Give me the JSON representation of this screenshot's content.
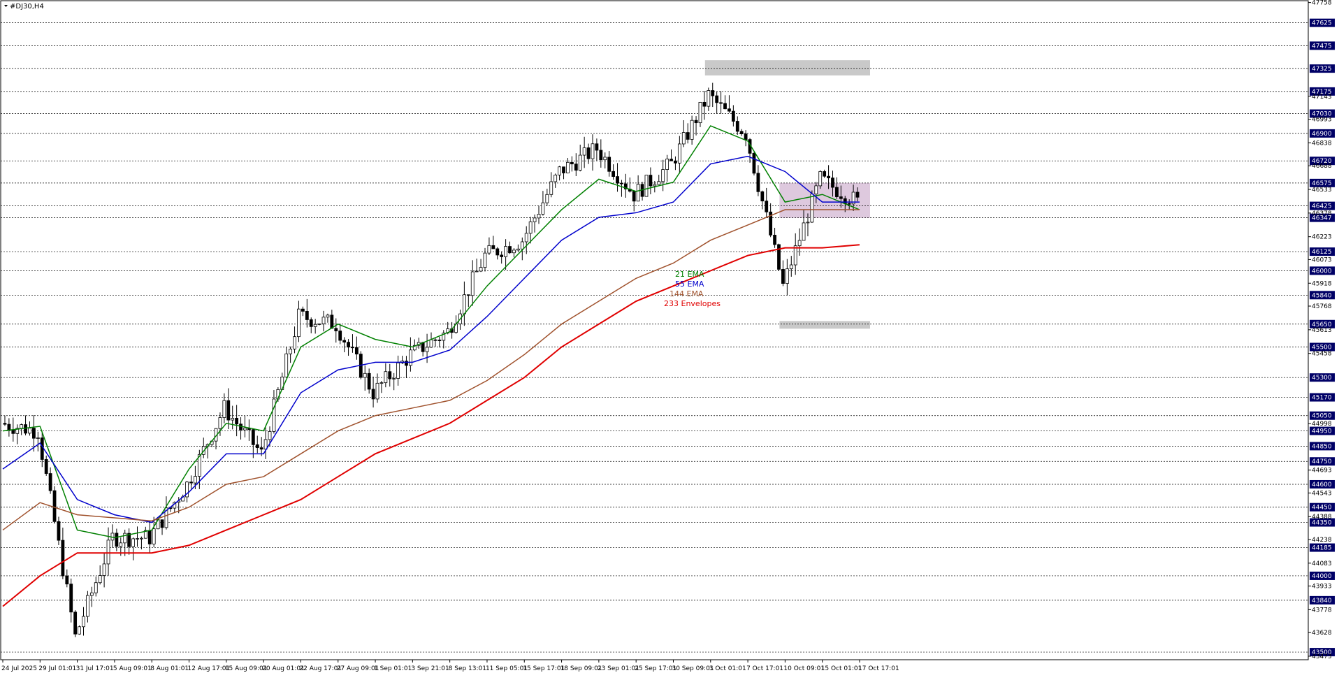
{
  "chart_data": {
    "type": "candlestick",
    "title": "#DJ30,H4",
    "ylim": [
      43450,
      47770
    ],
    "x_labels": [
      "24 Jul 2025",
      "29 Jul 01:01",
      "31 Jul 17:01",
      "5 Aug 09:01",
      "8 Aug 01:01",
      "12 Aug 17:01",
      "15 Aug 09:01",
      "20 Aug 01:01",
      "22 Aug 17:01",
      "27 Aug 09:01",
      "1 Sep 01:01",
      "3 Sep 21:01",
      "8 Sep 13:01",
      "11 Sep 05:01",
      "15 Sep 17:01",
      "18 Sep 09:01",
      "23 Sep 01:01",
      "25 Sep 17:01",
      "30 Sep 09:01",
      "3 Oct 01:01",
      "7 Oct 17:01",
      "10 Oct 09:01",
      "15 Oct 01:01",
      "17 Oct 17:01"
    ],
    "y_ticks_boxed": [
      47625,
      47475,
      47325,
      47175,
      47030,
      46900,
      46720,
      46575,
      46425,
      46347,
      46125,
      46000,
      45840,
      45650,
      45500,
      45300,
      45170,
      45050,
      44950,
      44850,
      44750,
      44600,
      44450,
      44350,
      44185,
      44000,
      43840,
      43500
    ],
    "y_ticks_plain": [
      47758,
      47143,
      46993,
      46838,
      46688,
      46533,
      46378,
      46223,
      46073,
      45918,
      45768,
      45613,
      45458,
      44998,
      44693,
      44543,
      44388,
      44238,
      44083,
      43933,
      43778,
      43628,
      43473
    ],
    "legend": [
      {
        "label": "21 EMA",
        "color": "#008000"
      },
      {
        "label": "55 EMA",
        "color": "#0000cc"
      },
      {
        "label": "144 EMA",
        "color": "#a0522d"
      },
      {
        "label": "233 Envelopes",
        "color": "#e00000"
      }
    ],
    "candles_anchor_closes": [
      [
        "24 Jul 2025",
        45000
      ],
      [
        "29 Jul 01:01",
        44950
      ],
      [
        "31 Jul 17:01",
        43600
      ],
      [
        "5 Aug 09:01",
        44250
      ],
      [
        "8 Aug 01:01",
        44250
      ],
      [
        "12 Aug 17:01",
        44600
      ],
      [
        "15 Aug 09:01",
        45100
      ],
      [
        "20 Aug 01:01",
        44800
      ],
      [
        "22 Aug 17:01",
        45700
      ],
      [
        "27 Aug 09:01",
        45650
      ],
      [
        "1 Sep 01:01",
        45200
      ],
      [
        "3 Sep 21:01",
        45450
      ],
      [
        "8 Sep 13:01",
        45600
      ],
      [
        "11 Sep 05:01",
        46100
      ],
      [
        "15 Sep 17:01",
        46200
      ],
      [
        "18 Sep 09:01",
        46650
      ],
      [
        "23 Sep 01:01",
        46800
      ],
      [
        "25 Sep 17:01",
        46500
      ],
      [
        "30 Sep 09:01",
        46700
      ],
      [
        "3 Oct 01:01",
        47150
      ],
      [
        "7 Oct 17:01",
        46900
      ],
      [
        "10 Oct 09:01",
        45900
      ],
      [
        "15 Oct 01:01",
        46600
      ],
      [
        "17 Oct 17:01",
        46450
      ]
    ],
    "series": [
      {
        "name": "21 EMA",
        "values": [
          44950,
          44980,
          44300,
          44250,
          44300,
          44700,
          45000,
          44950,
          45500,
          45650,
          45550,
          45500,
          45600,
          45900,
          46150,
          46400,
          46600,
          46520,
          46580,
          46950,
          46850,
          46450,
          46500,
          46400
        ]
      },
      {
        "name": "55 EMA",
        "values": [
          44700,
          44870,
          44500,
          44400,
          44350,
          44550,
          44800,
          44800,
          45200,
          45350,
          45400,
          45400,
          45480,
          45700,
          45950,
          46200,
          46350,
          46380,
          46450,
          46700,
          46750,
          46650,
          46450,
          46450
        ]
      },
      {
        "name": "144 EMA",
        "values": [
          44300,
          44480,
          44400,
          44380,
          44360,
          44450,
          44600,
          44650,
          44800,
          44950,
          45050,
          45100,
          45150,
          45280,
          45450,
          45650,
          45800,
          45950,
          46050,
          46200,
          46300,
          46400,
          46400,
          46400
        ]
      },
      {
        "name": "233 Envelopes",
        "values": [
          43800,
          44000,
          44150,
          44150,
          44150,
          44200,
          44300,
          44400,
          44500,
          44650,
          44800,
          44900,
          45000,
          45150,
          45300,
          45500,
          45650,
          45800,
          45900,
          46000,
          46100,
          46150,
          46150,
          46170
        ]
      }
    ],
    "zones": [
      {
        "from": 47280,
        "to": 47380,
        "start": "3 Oct 01:01",
        "end": "17 Oct 17:01",
        "color": "#c0c0c0"
      },
      {
        "from": 45620,
        "to": 45670,
        "start": "10 Oct 09:01",
        "end": "17 Oct 17:01",
        "color": "#c0c0c0"
      },
      {
        "from": 46347,
        "to": 46575,
        "start": "10 Oct 09:01",
        "end": "17 Oct 17:01",
        "color": "#d8bfd8"
      }
    ]
  },
  "colors": {
    "bull": "#000000",
    "bear": "#000000",
    "grid": "#000000",
    "ema21": "#008000",
    "ema55": "#0000cc",
    "ema144": "#a0522d",
    "env233": "#e00000",
    "box": "#000066"
  }
}
